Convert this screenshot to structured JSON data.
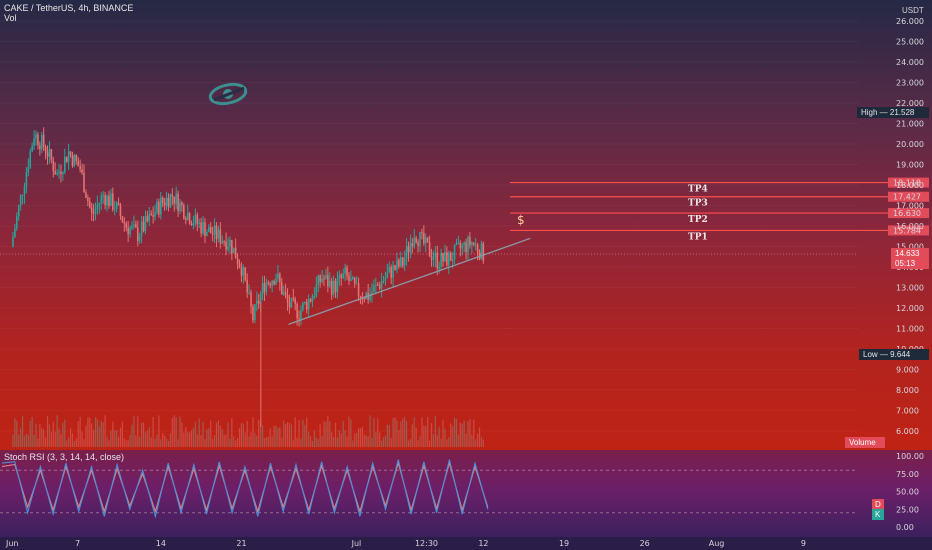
{
  "header": {
    "symbol_line": "CAKE / TetherUS, 4h, BINANCE",
    "vol_label": "Vol"
  },
  "currency": "USDT",
  "rsi_header": "Stoch RSI (3, 3, 14, 14, close)",
  "high_badge": {
    "label": "High",
    "value": "21.528"
  },
  "low_badge": {
    "label": "Low",
    "value": "9.644"
  },
  "volume_badge": "Volume",
  "price_badges": {
    "current": "14.633",
    "countdown": "05:13"
  },
  "rsi_badges": {
    "d": "D",
    "k": "K"
  },
  "colors": {
    "up_candle": "#26a69a",
    "down_candle": "#e57373",
    "tp_line": "#ff4d4d",
    "trendline": "#8a9aa5",
    "rsi_k": "#4a90d9",
    "rsi_d": "#e08080",
    "high_badge": "#1e2a3a",
    "low_badge": "#1e2a3a"
  },
  "chart_data": [
    {
      "type": "candlestick",
      "title": "CAKE / TetherUS, 4h, BINANCE",
      "y_axis_unit": "USDT",
      "ylim": [
        5.4,
        27.2
      ],
      "y_ticks": [
        "6.000",
        "7.000",
        "8.000",
        "9.000",
        "10.000",
        "11.000",
        "12.000",
        "13.000",
        "14.000",
        "15.000",
        "16.000",
        "17.000",
        "18.000",
        "19.000",
        "20.000",
        "21.000",
        "22.000",
        "23.000",
        "24.000",
        "25.000",
        "26.000"
      ],
      "x_ticks": [
        "Jun",
        "7",
        "14",
        "21",
        "Jul",
        "12:30",
        "12",
        "19",
        "26",
        "Aug",
        "9"
      ],
      "price_path_daily": [
        {
          "date": "Jun 1",
          "close": 15.0
        },
        {
          "date": "Jun 2",
          "close": 17.8
        },
        {
          "date": "Jun 3",
          "close": 20.5
        },
        {
          "date": "Jun 4",
          "close": 19.8
        },
        {
          "date": "Jun 5",
          "close": 18.5
        },
        {
          "date": "Jun 6",
          "close": 19.6
        },
        {
          "date": "Jun 7",
          "close": 18.8
        },
        {
          "date": "Jun 8",
          "close": 16.5
        },
        {
          "date": "Jun 9",
          "close": 17.5
        },
        {
          "date": "Jun 10",
          "close": 17.0
        },
        {
          "date": "Jun 11",
          "close": 16.0
        },
        {
          "date": "Jun 12",
          "close": 15.6
        },
        {
          "date": "Jun 13",
          "close": 16.3
        },
        {
          "date": "Jun 14",
          "close": 17.1
        },
        {
          "date": "Jun 15",
          "close": 17.5
        },
        {
          "date": "Jun 16",
          "close": 16.8
        },
        {
          "date": "Jun 17",
          "close": 16.2
        },
        {
          "date": "Jun 18",
          "close": 15.8
        },
        {
          "date": "Jun 19",
          "close": 15.5
        },
        {
          "date": "Jun 20",
          "close": 15.2
        },
        {
          "date": "Jun 21",
          "close": 14.0
        },
        {
          "date": "Jun 22",
          "close": 11.5
        },
        {
          "date": "Jun 23",
          "close": 13.2
        },
        {
          "date": "Jun 24",
          "close": 13.6
        },
        {
          "date": "Jun 25",
          "close": 12.2
        },
        {
          "date": "Jun 26",
          "close": 11.8
        },
        {
          "date": "Jun 27",
          "close": 12.5
        },
        {
          "date": "Jun 28",
          "close": 13.5
        },
        {
          "date": "Jun 29",
          "close": 13.0
        },
        {
          "date": "Jun 30",
          "close": 13.6
        },
        {
          "date": "Jul 1",
          "close": 12.8
        },
        {
          "date": "Jul 2",
          "close": 12.6
        },
        {
          "date": "Jul 3",
          "close": 13.2
        },
        {
          "date": "Jul 4",
          "close": 13.8
        },
        {
          "date": "Jul 5",
          "close": 14.2
        },
        {
          "date": "Jul 6",
          "close": 15.7
        },
        {
          "date": "Jul 7",
          "close": 15.0
        },
        {
          "date": "Jul 8",
          "close": 14.3
        },
        {
          "date": "Jul 9",
          "close": 14.4
        },
        {
          "date": "Jul 10",
          "close": 14.9
        },
        {
          "date": "Jul 11",
          "close": 15.2
        },
        {
          "date": "Jul 12",
          "close": 14.633
        }
      ],
      "stats": {
        "high": 21.528,
        "low": 9.644,
        "last": 14.633
      },
      "levels": [
        {
          "name": "TP1",
          "value": 15.784
        },
        {
          "name": "TP2",
          "value": 16.63
        },
        {
          "name": "TP3",
          "value": 17.427
        },
        {
          "name": "TP4",
          "value": 18.118
        }
      ],
      "annotations": [
        "$",
        "TP1",
        "TP2",
        "TP3",
        "TP4"
      ],
      "trendline": [
        {
          "date": "Jun 25",
          "value": 11.2
        },
        {
          "date": "Jul 16",
          "value": 15.4
        }
      ]
    },
    {
      "type": "line",
      "title": "Stoch RSI (3, 3, 14, 14, close)",
      "ylim": [
        -6,
        108
      ],
      "y_ticks": [
        "0.00",
        "25.00",
        "50.00",
        "75.00",
        "100.00"
      ],
      "bands": [
        20,
        80
      ],
      "series": [
        {
          "name": "K",
          "values": [
            90,
            92,
            20,
            85,
            18,
            90,
            22,
            85,
            15,
            88,
            25,
            80,
            15,
            90,
            20,
            88,
            18,
            92,
            20,
            85,
            15,
            90,
            22,
            88,
            18,
            92,
            20,
            85,
            15,
            90,
            25,
            95,
            18,
            92,
            20,
            95,
            18,
            90,
            25
          ]
        },
        {
          "name": "D",
          "values": [
            85,
            88,
            28,
            80,
            24,
            85,
            28,
            80,
            22,
            82,
            30,
            75,
            22,
            85,
            26,
            82,
            24,
            86,
            26,
            80,
            22,
            85,
            28,
            82,
            24,
            86,
            26,
            80,
            22,
            85,
            30,
            90,
            24,
            86,
            26,
            90,
            24,
            85,
            28
          ]
        }
      ]
    }
  ]
}
